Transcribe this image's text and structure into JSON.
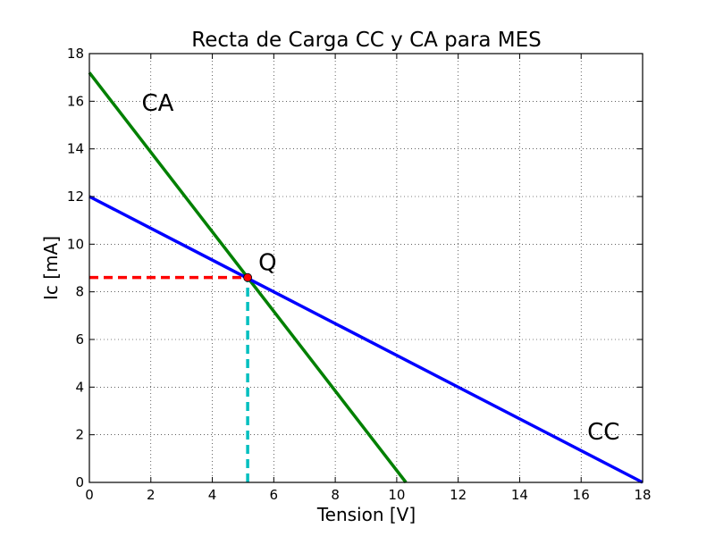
{
  "chart_data": {
    "type": "line",
    "title": "Recta de Carga CC y CA para MES",
    "xlabel": "Tension [V]",
    "ylabel": "Ic [mA]",
    "xlim": [
      0,
      18
    ],
    "ylim": [
      0,
      18
    ],
    "xticks": [
      0,
      2,
      4,
      6,
      8,
      10,
      12,
      14,
      16,
      18
    ],
    "yticks": [
      0,
      2,
      4,
      6,
      8,
      10,
      12,
      14,
      16,
      18
    ],
    "grid": true,
    "series": [
      {
        "color": "#008000",
        "dash": "solid",
        "x": [
          0,
          10.3
        ],
        "y": [
          17.2,
          0
        ]
      },
      {
        "color": "#0000ff",
        "dash": "solid",
        "x": [
          0,
          18
        ],
        "y": [
          12,
          0
        ]
      },
      {
        "color": "#ff0000",
        "dash": "dashed",
        "x": [
          0,
          5.15
        ],
        "y": [
          8.6,
          8.6
        ]
      },
      {
        "color": "#00bfbf",
        "dash": "dashed",
        "x": [
          5.15,
          5.15
        ],
        "y": [
          0,
          8.6
        ]
      }
    ],
    "point": {
      "x": 5.15,
      "y": 8.6,
      "color": "#ff0000"
    },
    "annotations": [
      {
        "text": "CA",
        "x": 1.7,
        "y": 15.6
      },
      {
        "text": "Q",
        "x": 5.5,
        "y": 8.9
      },
      {
        "text": "CC",
        "x": 16.2,
        "y": 1.8
      }
    ]
  }
}
